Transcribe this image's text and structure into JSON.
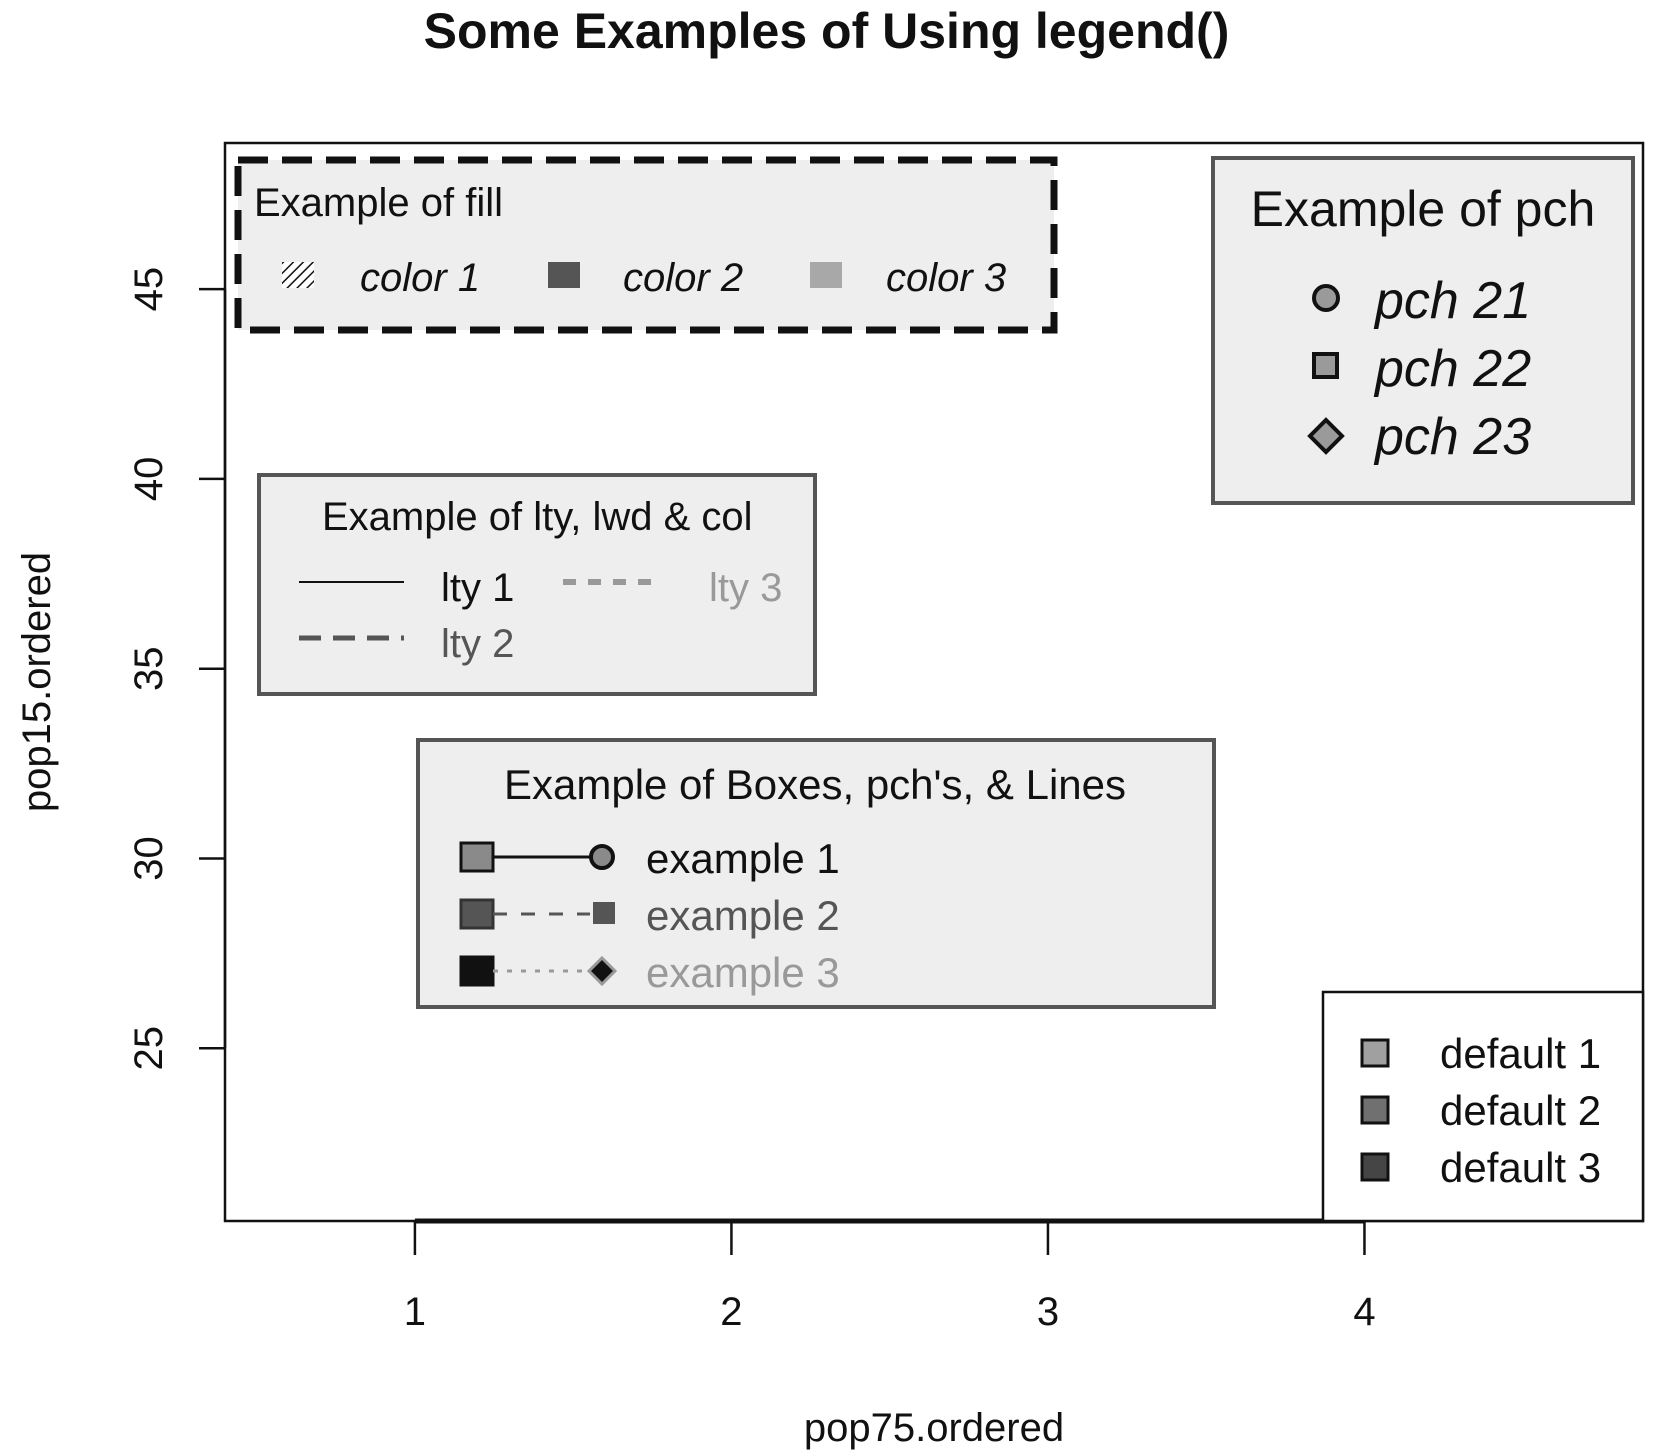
{
  "chart_data": {
    "type": "scatter",
    "title": "Some Examples of Using legend()",
    "xlabel": "pop75.ordered",
    "ylabel": "pop15.ordered",
    "xlim": [
      0.4,
      4.88
    ],
    "ylim": [
      20.45,
      48.85
    ],
    "x_ticks": [
      1,
      2,
      3,
      4
    ],
    "y_ticks": [
      25,
      30,
      35,
      40,
      45
    ],
    "series": [],
    "legends": [
      {
        "id": "fill",
        "title": "Example of fill",
        "position": "top-left",
        "border": "thick dashed",
        "entries": [
          {
            "label": "color 1",
            "fill": "hatched"
          },
          {
            "label": "color 2",
            "fill": "#555555"
          },
          {
            "label": "color 3",
            "fill": "#a8a8a8"
          }
        ]
      },
      {
        "id": "pch",
        "title": "Example of pch",
        "position": "top-right",
        "entries": [
          {
            "label": "pch 21",
            "symbol": "circle"
          },
          {
            "label": "pch 22",
            "symbol": "square"
          },
          {
            "label": "pch 23",
            "symbol": "diamond"
          }
        ]
      },
      {
        "id": "lty",
        "title": "Example of lty, lwd & col",
        "position": "left",
        "entries": [
          {
            "label": "lty 1",
            "line": "solid",
            "color": "#111111"
          },
          {
            "label": "lty 2",
            "line": "dashed",
            "color": "#555555"
          },
          {
            "label": "lty 3",
            "line": "dotted",
            "color": "#999999"
          }
        ]
      },
      {
        "id": "boxes",
        "title": "Example of Boxes, pch's, & Lines",
        "position": "center",
        "entries": [
          {
            "label": "example 1",
            "box": "#8a8a8a",
            "line": "solid",
            "symbol": "circle",
            "color": "#111111"
          },
          {
            "label": "example 2",
            "box": "#555555",
            "line": "dashed",
            "symbol": "square",
            "color": "#555555"
          },
          {
            "label": "example 3",
            "box": "#111111",
            "line": "dotted",
            "symbol": "diamond",
            "color": "#999999"
          }
        ]
      },
      {
        "id": "default",
        "title": "",
        "position": "bottom-right",
        "entries": [
          {
            "label": "default 1",
            "fill": "#a0a0a0"
          },
          {
            "label": "default 2",
            "fill": "#707070"
          },
          {
            "label": "default 3",
            "fill": "#454545"
          }
        ]
      }
    ]
  }
}
